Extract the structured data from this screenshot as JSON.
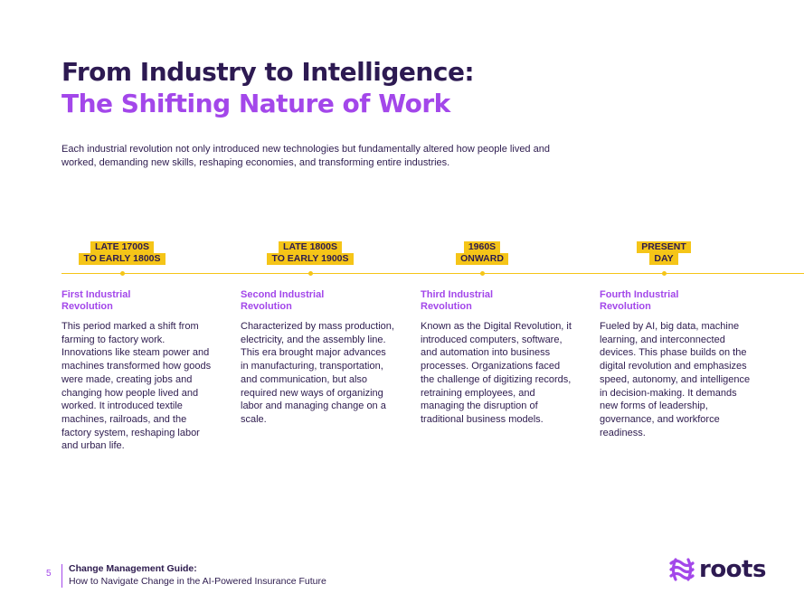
{
  "header": {
    "title_line1": "From Industry to Intelligence:",
    "title_line2": "The Shifting Nature of Work"
  },
  "intro": "Each industrial revolution not only introduced new technologies but fundamentally altered how people lived and worked, demanding new skills, reshaping economies, and transforming entire industries.",
  "timeline": [
    {
      "era_line1": "LATE 1700S",
      "era_line2": "TO EARLY 1800S",
      "heading_line1": "First Industrial",
      "heading_line2": "Revolution",
      "body": "This period marked a shift from farming to factory work. Innovations like steam power and machines transformed how goods were made, creating jobs and changing how people lived and worked. It introduced textile machines, railroads, and the factory system, reshaping labor and urban life."
    },
    {
      "era_line1": "LATE 1800S",
      "era_line2": "TO EARLY 1900S",
      "heading_line1": "Second Industrial",
      "heading_line2": "Revolution",
      "body": "Characterized by mass production, electricity, and the assembly line. This era brought major advances in manufacturing, transportation, and communication, but also required new ways of organizing labor and managing change on a scale."
    },
    {
      "era_line1": "1960S",
      "era_line2": "ONWARD",
      "heading_line1": "Third Industrial",
      "heading_line2": "Revolution",
      "body": "Known as the Digital Revolution, it introduced computers, software, and automation into business processes. Organizations faced the challenge of digitizing records, retraining employees, and managing the disruption of traditional business models."
    },
    {
      "era_line1": "PRESENT",
      "era_line2": "DAY",
      "heading_line1": "Fourth Industrial",
      "heading_line2": "Revolution",
      "body": "Fueled by AI, big data, machine learning, and interconnected devices. This phase builds on the digital revolution and emphasizes speed, autonomy, and intelligence in decision-making. It demands new forms of leadership, governance, and workforce readiness."
    }
  ],
  "footer": {
    "page_number": "5",
    "guide_title": "Change Management Guide:",
    "guide_subtitle": "How to Navigate Change in the AI-Powered Insurance Future",
    "logo_text": "roots"
  },
  "colors": {
    "accent_purple": "#a347ea",
    "dark_navy": "#2d1a52",
    "timeline_yellow": "#f5c518"
  }
}
